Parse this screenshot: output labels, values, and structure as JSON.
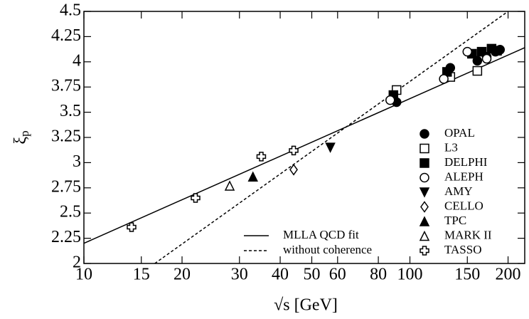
{
  "chart_data": {
    "type": "scatter",
    "xlabel": "√s [GeV]",
    "ylabel": {
      "main": "ξ",
      "sub": "p"
    },
    "xscale": "log",
    "xlim": [
      10,
      225
    ],
    "ylim": [
      2,
      4.5
    ],
    "xticks": [
      10,
      15,
      20,
      30,
      40,
      50,
      60,
      80,
      100,
      150,
      200
    ],
    "yticks": [
      2,
      2.25,
      2.5,
      2.75,
      3,
      3.25,
      3.5,
      3.75,
      4,
      4.25,
      4.5
    ],
    "series": [
      {
        "name": "OPAL",
        "marker": "circle",
        "filled": true,
        "color": "#000",
        "x": [
          91,
          133,
          161,
          172,
          183,
          189
        ],
        "values": [
          3.6,
          3.94,
          4.01,
          4.05,
          4.1,
          4.12
        ]
      },
      {
        "name": "L3",
        "marker": "square",
        "filled": false,
        "color": "#000",
        "x": [
          91,
          133,
          161
        ],
        "values": [
          3.72,
          3.85,
          3.91
        ]
      },
      {
        "name": "DELPHI",
        "marker": "square",
        "filled": true,
        "color": "#000",
        "x": [
          89,
          130,
          155,
          166,
          178,
          185
        ],
        "values": [
          3.67,
          3.9,
          4.08,
          4.1,
          4.13,
          4.11
        ]
      },
      {
        "name": "ALEPH",
        "marker": "circle",
        "filled": false,
        "color": "#000",
        "x": [
          87,
          127,
          150,
          172
        ],
        "values": [
          3.62,
          3.83,
          4.1,
          4.03
        ]
      },
      {
        "name": "AMY",
        "marker": "triangle-down",
        "filled": true,
        "color": "#000",
        "x": [
          57
        ],
        "values": [
          3.15
        ]
      },
      {
        "name": "CELLO",
        "marker": "diamond",
        "filled": false,
        "color": "#000",
        "x": [
          44
        ],
        "values": [
          2.93
        ]
      },
      {
        "name": "TPC",
        "marker": "triangle-up",
        "filled": true,
        "color": "#000",
        "x": [
          33
        ],
        "values": [
          2.86
        ]
      },
      {
        "name": "MARK II",
        "marker": "triangle-up",
        "filled": false,
        "color": "#000",
        "x": [
          28
        ],
        "values": [
          2.77
        ]
      },
      {
        "name": "TASSO",
        "marker": "cross",
        "filled": false,
        "color": "#000",
        "x": [
          14,
          22,
          35,
          44
        ],
        "values": [
          2.36,
          2.65,
          3.06,
          3.12
        ]
      }
    ],
    "lines": [
      {
        "name": "MLLA QCD fit",
        "dash": false,
        "x": [
          10,
          225
        ],
        "values": [
          2.2,
          4.14
        ]
      },
      {
        "name": "without coherence",
        "dash": true,
        "x": [
          16.5,
          200
        ],
        "values": [
          2,
          4.5
        ]
      }
    ]
  }
}
